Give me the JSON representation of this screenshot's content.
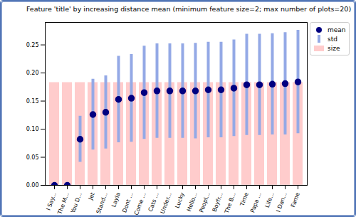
{
  "chart_data": {
    "type": "bar",
    "title": "Feature 'title' by increasing distance mean (minimum feature size=2; max number of plots=20)",
    "categories": [
      "I Say...",
      "The M...",
      "You D...",
      "Jet",
      "Stand...",
      "Layla",
      "Dont ...",
      "Come ...",
      "Cats ...",
      "Under...",
      "Lucky",
      "Hello...",
      "Peopl...",
      "Boyfr...",
      "The B...",
      "Time",
      "Papa ...",
      "Life...",
      "I Dan...",
      "Fame"
    ],
    "series": [
      {
        "name": "mean",
        "type": "scatter",
        "marker": "circle",
        "color": "#000080",
        "values": [
          0.0,
          0.0,
          0.082,
          0.126,
          0.13,
          0.153,
          0.155,
          0.165,
          0.168,
          0.168,
          0.168,
          0.168,
          0.17,
          0.17,
          0.173,
          0.179,
          0.179,
          0.18,
          0.181,
          0.184
        ]
      },
      {
        "name": "std",
        "type": "errorbar",
        "color": "#94a9e6",
        "values": [
          0.0,
          0.0,
          0.041,
          0.063,
          0.065,
          0.077,
          0.078,
          0.083,
          0.084,
          0.084,
          0.084,
          0.085,
          0.085,
          0.085,
          0.086,
          0.09,
          0.09,
          0.09,
          0.091,
          0.092
        ]
      },
      {
        "name": "size",
        "type": "bar",
        "color": "#ffcccc",
        "values": [
          0.183,
          0.183,
          0.183,
          0.183,
          0.183,
          0.183,
          0.183,
          0.183,
          0.183,
          0.183,
          0.183,
          0.183,
          0.183,
          0.183,
          0.183,
          0.183,
          0.183,
          0.183,
          0.183,
          0.183
        ]
      }
    ],
    "ylim": [
      0,
      0.29
    ],
    "yticks": [
      {
        "value": 0,
        "label": "0.00"
      },
      {
        "value": 0.05,
        "label": "0.05"
      },
      {
        "value": 0.1,
        "label": "0.10"
      },
      {
        "value": 0.15,
        "label": "0.15"
      },
      {
        "value": 0.2,
        "label": "0.20"
      },
      {
        "value": 0.25,
        "label": "0.25"
      }
    ],
    "grid": false,
    "legend": "upper right"
  }
}
